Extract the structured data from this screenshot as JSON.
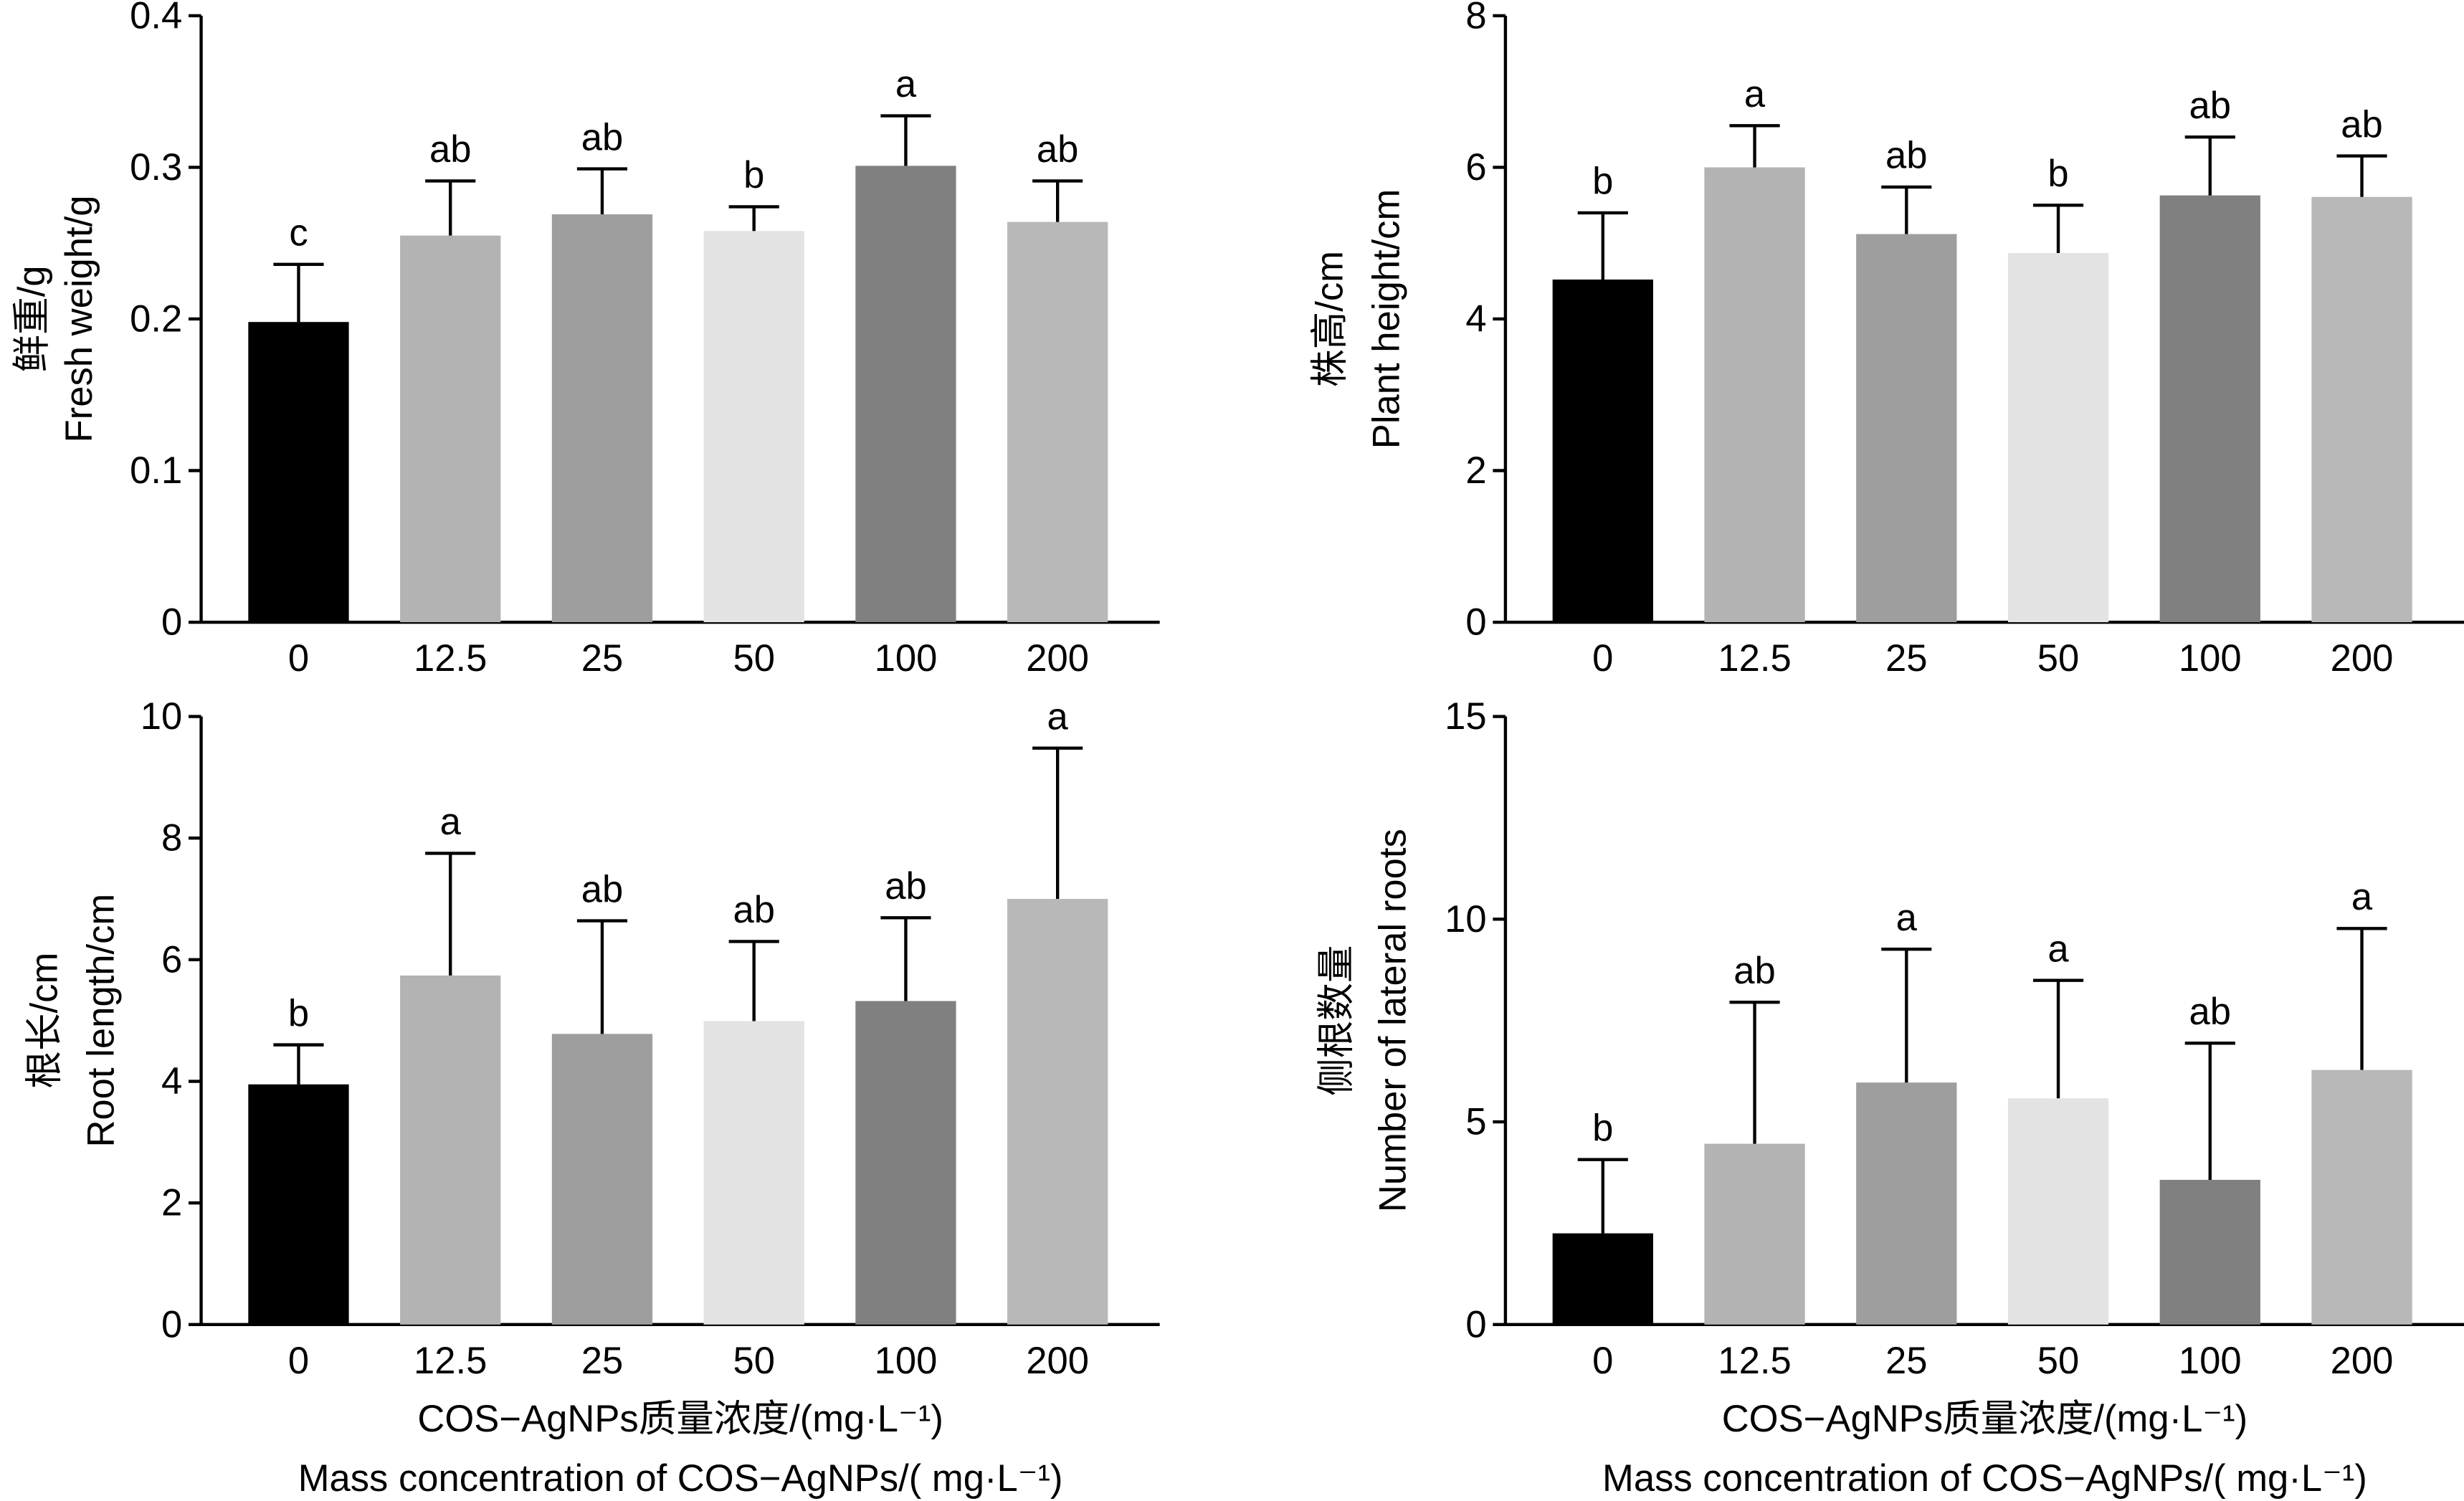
{
  "chart_data": [
    {
      "type": "bar",
      "ylabel": [
        "鲜重/g",
        "Fresh weight/g"
      ],
      "categories": [
        "0",
        "12.5",
        "25",
        "50",
        "100",
        "200"
      ],
      "values": [
        0.198,
        0.255,
        0.269,
        0.258,
        0.301,
        0.264
      ],
      "errors": [
        0.038,
        0.036,
        0.03,
        0.016,
        0.033,
        0.027
      ],
      "letters": [
        "c",
        "ab",
        "ab",
        "b",
        "a",
        "ab"
      ],
      "colors": [
        "#000000",
        "#b3b3b3",
        "#9e9e9e",
        "#e3e3e3",
        "#808080",
        "#b8b8b8"
      ],
      "ylim": [
        0,
        0.4
      ],
      "yticks": [
        0,
        0.1,
        0.2,
        0.3,
        0.4
      ]
    },
    {
      "type": "bar",
      "ylabel": [
        "株高/cm",
        "Plant height/cm"
      ],
      "categories": [
        "0",
        "12.5",
        "25",
        "50",
        "100",
        "200"
      ],
      "values": [
        4.52,
        6.0,
        5.12,
        4.87,
        5.63,
        5.61
      ],
      "errors": [
        0.88,
        0.55,
        0.62,
        0.63,
        0.77,
        0.54
      ],
      "letters": [
        "b",
        "a",
        "ab",
        "b",
        "ab",
        "ab"
      ],
      "colors": [
        "#000000",
        "#b3b3b3",
        "#9e9e9e",
        "#e3e3e3",
        "#808080",
        "#b8b8b8"
      ],
      "ylim": [
        0,
        8
      ],
      "yticks": [
        0,
        2,
        4,
        6,
        8
      ]
    },
    {
      "type": "bar",
      "ylabel": [
        "根长/cm",
        "Root length/cm"
      ],
      "xlabel": [
        "COS−AgNPs质量浓度/(mg·L⁻¹)",
        "Mass concentration of COS−AgNPs/( mg·L⁻¹)"
      ],
      "categories": [
        "0",
        "12.5",
        "25",
        "50",
        "100",
        "200"
      ],
      "values": [
        3.95,
        5.74,
        4.78,
        4.99,
        5.32,
        7.0
      ],
      "errors": [
        0.65,
        2.01,
        1.86,
        1.31,
        1.37,
        2.48
      ],
      "letters": [
        "b",
        "a",
        "ab",
        "ab",
        "ab",
        "a"
      ],
      "colors": [
        "#000000",
        "#b3b3b3",
        "#9e9e9e",
        "#e3e3e3",
        "#808080",
        "#b8b8b8"
      ],
      "ylim": [
        0,
        10
      ],
      "yticks": [
        0,
        2,
        4,
        6,
        8,
        10
      ]
    },
    {
      "type": "bar",
      "ylabel": [
        "侧根数量",
        "Number of lateral roots"
      ],
      "xlabel": [
        "COS−AgNPs质量浓度/(mg·L⁻¹)",
        "Mass concentration of COS−AgNPs/( mg·L⁻¹)"
      ],
      "categories": [
        "0",
        "12.5",
        "25",
        "50",
        "100",
        "200"
      ],
      "values": [
        2.25,
        4.46,
        5.97,
        5.58,
        3.57,
        6.28
      ],
      "errors": [
        1.82,
        3.49,
        3.29,
        2.91,
        3.37,
        3.49
      ],
      "letters": [
        "b",
        "ab",
        "a",
        "a",
        "ab",
        "a"
      ],
      "colors": [
        "#000000",
        "#b3b3b3",
        "#9e9e9e",
        "#e3e3e3",
        "#808080",
        "#b8b8b8"
      ],
      "ylim": [
        0,
        15
      ],
      "yticks": [
        0,
        5,
        10,
        15
      ]
    }
  ]
}
